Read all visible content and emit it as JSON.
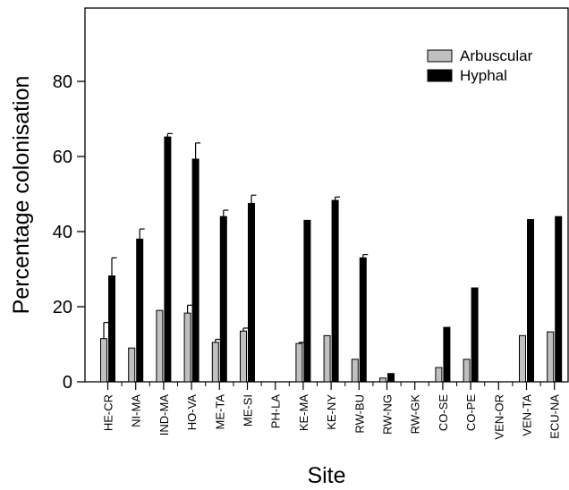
{
  "chart_data": {
    "type": "bar",
    "xlabel": "Site",
    "ylabel": "Percentage colonisation",
    "ylim": [
      0,
      100
    ],
    "yticks": [
      0,
      20,
      40,
      60,
      80
    ],
    "grid": false,
    "legend_position": "top-right",
    "categories": [
      "HE-CR",
      "NI-MA",
      "IND-MA",
      "HO-VA",
      "ME-TA",
      "ME-SI",
      "PH-LA",
      "KE-MA",
      "KE-NY",
      "RW-BU",
      "RW-NG",
      "RW-GK",
      "CO-SE",
      "CO-PE",
      "VEN-OR",
      "VEN-TA",
      "ECU-NA"
    ],
    "series": [
      {
        "name": "Arbuscular",
        "color": "#c0c0c0",
        "values": [
          11.5,
          9,
          19,
          18.3,
          10.5,
          13.5,
          0,
          10.2,
          12.3,
          6,
          1,
          0,
          3.8,
          6,
          0,
          12.3,
          13.3
        ],
        "errors": [
          4.3,
          0,
          0,
          2.1,
          0.8,
          0.8,
          0,
          0.3,
          0,
          0,
          0,
          0,
          0,
          0,
          0,
          0,
          0
        ]
      },
      {
        "name": "Hyphal",
        "color": "#000000",
        "values": [
          28.2,
          38,
          65.2,
          59.3,
          44,
          47.5,
          0,
          43,
          48.3,
          33,
          2.2,
          0,
          14.5,
          25,
          0,
          43.2,
          44
        ],
        "errors": [
          4.8,
          2.7,
          0.9,
          4.3,
          1.7,
          2.2,
          0,
          0,
          0.9,
          0.9,
          0,
          0,
          0,
          0,
          0,
          0,
          0
        ]
      }
    ]
  }
}
